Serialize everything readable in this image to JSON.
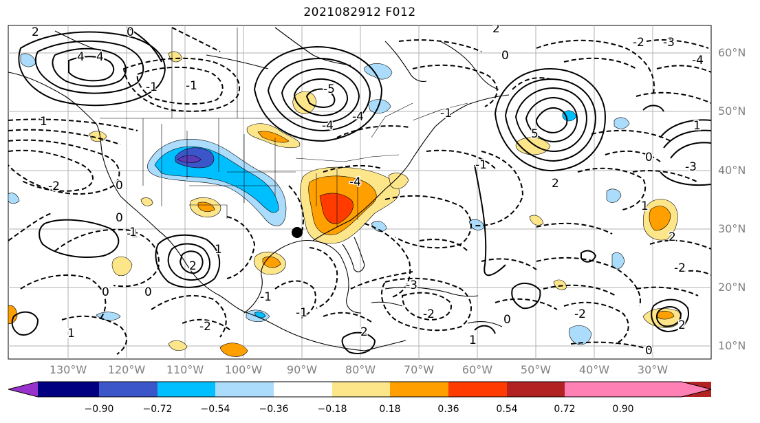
{
  "title": "2021082912 F012",
  "latitude_labels": [
    "60°N",
    "50°N",
    "40°N",
    "30°N",
    "20°N",
    "10°N"
  ],
  "longitude_labels": [
    "130°W",
    "120°W",
    "110°W",
    "100°W",
    "90°W",
    "80°W",
    "70°W",
    "60°W",
    "50°W",
    "40°W",
    "30°W"
  ],
  "colorbar": {
    "ticks": [
      "−0.90",
      "−0.72",
      "−0.54",
      "−0.36",
      "−0.18",
      "0.18",
      "0.36",
      "0.54",
      "0.72",
      "0.90"
    ],
    "colors": [
      "#9932cc",
      "#000080",
      "#3b56c8",
      "#00bfff",
      "#abdcfb",
      "#ffffff",
      "#fde68a",
      "#ff9f00",
      "#ff3b00",
      "#b22222",
      "#ff80b4"
    ]
  },
  "contour_labels": [
    "2",
    "0",
    "-4",
    "-3",
    "-2",
    "-1",
    "0",
    "2",
    "-1",
    "-4",
    "-1",
    "-2",
    "0",
    "-3",
    "-4",
    "1",
    "5",
    "4",
    "2",
    "-5",
    "1",
    "-2",
    "0",
    "-1",
    "-4",
    "-2",
    "0",
    "2",
    "1",
    "-1",
    "-3",
    "4",
    "0",
    "-2",
    "1",
    "2",
    "2",
    "-2",
    "0",
    "-1",
    "1",
    "0",
    "1",
    "2",
    "1",
    "0",
    "-1"
  ]
}
